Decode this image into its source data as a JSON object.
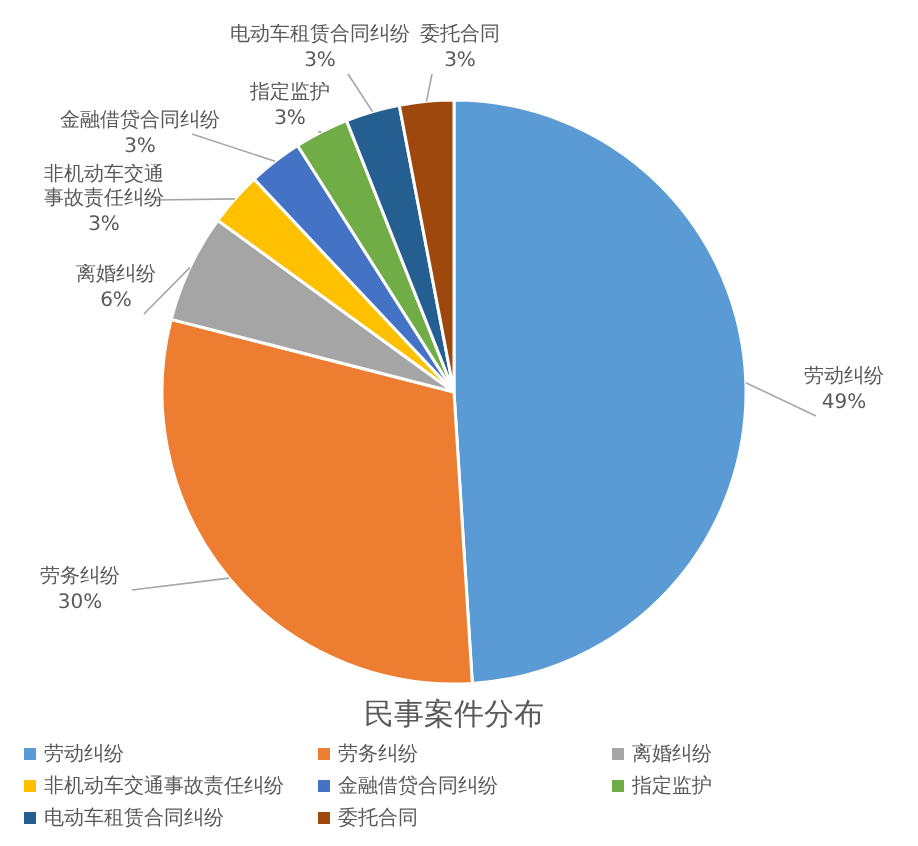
{
  "chart_data": {
    "type": "pie",
    "title": "民事案件分布",
    "categories": [
      "劳动纠纷",
      "劳务纠纷",
      "离婚纠纷",
      "非机动车交通事故责任纠纷",
      "金融借贷合同纠纷",
      "指定监护",
      "电动车租赁合同纠纷",
      "委托合同"
    ],
    "values": [
      49,
      30,
      6,
      3,
      3,
      3,
      3,
      3
    ],
    "colors": [
      "#5b9bd5",
      "#ed7d31",
      "#a5a5a5",
      "#ffc000",
      "#4472c4",
      "#70ad47",
      "#255e91",
      "#9e480e"
    ],
    "value_labels": [
      "49%",
      "30%",
      "6%",
      "3%",
      "3%",
      "3%",
      "3%",
      "3%"
    ],
    "legend": "bottom"
  }
}
